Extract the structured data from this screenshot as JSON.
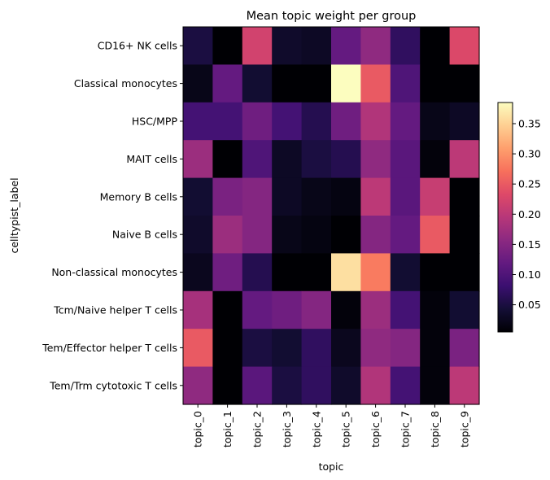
{
  "chart_data": {
    "type": "heatmap",
    "title": "Mean topic weight per group",
    "xlabel": "topic",
    "ylabel": "celltypist_label",
    "x_categories": [
      "topic_0",
      "topic_1",
      "topic_2",
      "topic_3",
      "topic_4",
      "topic_5",
      "topic_6",
      "topic_7",
      "topic_8",
      "topic_9"
    ],
    "y_categories": [
      "CD16+ NK cells",
      "Classical monocytes",
      "HSC/MPP",
      "MAIT cells",
      "Memory B cells",
      "Naive B cells",
      "Non-classical monocytes",
      "Tcm/Naive helper T cells",
      "Tem/Effector helper T cells",
      "Tem/Trm cytotoxic T cells"
    ],
    "values": [
      [
        0.05,
        0.005,
        0.22,
        0.035,
        0.03,
        0.12,
        0.16,
        0.07,
        0.005,
        0.23
      ],
      [
        0.02,
        0.12,
        0.04,
        0.005,
        0.005,
        0.385,
        0.25,
        0.1,
        0.005,
        0.005
      ],
      [
        0.09,
        0.09,
        0.13,
        0.09,
        0.06,
        0.13,
        0.19,
        0.12,
        0.02,
        0.03
      ],
      [
        0.17,
        0.005,
        0.1,
        0.03,
        0.05,
        0.06,
        0.16,
        0.11,
        0.01,
        0.2
      ],
      [
        0.04,
        0.14,
        0.15,
        0.03,
        0.02,
        0.015,
        0.2,
        0.11,
        0.21,
        0.005
      ],
      [
        0.035,
        0.17,
        0.15,
        0.02,
        0.015,
        0.005,
        0.15,
        0.12,
        0.25,
        0.005
      ],
      [
        0.025,
        0.13,
        0.06,
        0.005,
        0.005,
        0.36,
        0.28,
        0.04,
        0.005,
        0.005
      ],
      [
        0.18,
        0.005,
        0.12,
        0.13,
        0.15,
        0.01,
        0.17,
        0.09,
        0.01,
        0.04
      ],
      [
        0.25,
        0.005,
        0.05,
        0.04,
        0.07,
        0.025,
        0.16,
        0.15,
        0.01,
        0.14
      ],
      [
        0.16,
        0.005,
        0.11,
        0.05,
        0.07,
        0.035,
        0.19,
        0.09,
        0.01,
        0.2
      ]
    ],
    "colormap": "magma",
    "colorbar": {
      "range": [
        0.005,
        0.385
      ],
      "ticks": [
        0.05,
        0.1,
        0.15,
        0.2,
        0.25,
        0.3,
        0.35
      ],
      "tick_labels": [
        "0.05",
        "0.10",
        "0.15",
        "0.20",
        "0.25",
        "0.30",
        "0.35"
      ],
      "placement": "right"
    },
    "grid": false
  }
}
